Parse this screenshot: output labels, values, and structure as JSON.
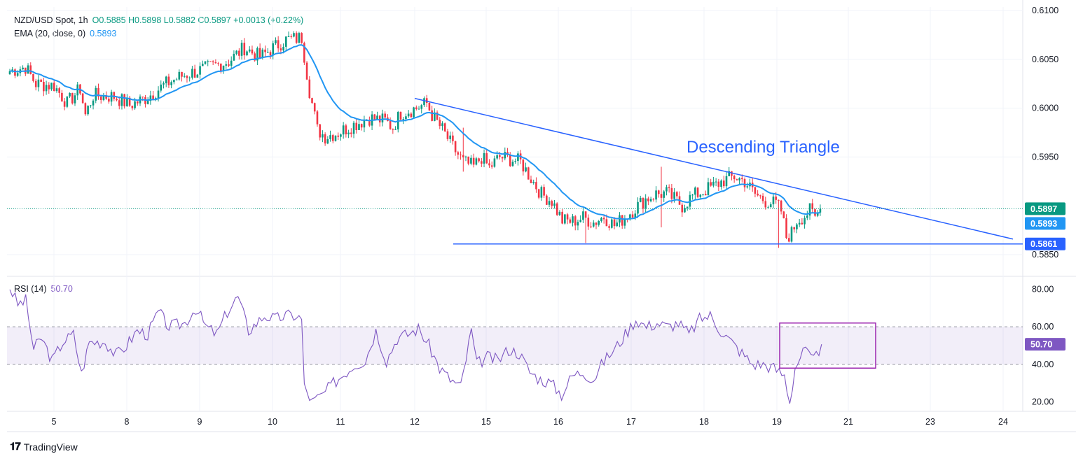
{
  "header": {
    "symbol": "NZD/USD Spot, 1h",
    "ohlc": "O0.5885  H0.5898  L0.5882  C0.5897  +0.0013 (+0.22%)",
    "ema_label": "EMA (20, close, 0)",
    "ema_value": "0.5893",
    "rsi_label": "RSI (14)",
    "rsi_value": "50.70"
  },
  "footer": {
    "brand": "TradingView"
  },
  "colors": {
    "up": "#089981",
    "down": "#f23645",
    "ema": "#2196f3",
    "trend": "#2962ff",
    "rsi": "#7e57c2",
    "grid": "#f0f3fa"
  },
  "chart_data": [
    {
      "type": "candlestick",
      "title": "NZD/USD Spot, 1h",
      "annotation": "Descending Triangle",
      "x_tick_labels": [
        "5",
        "8",
        "9",
        "10",
        "11",
        "12",
        "15",
        "16",
        "17",
        "18",
        "19",
        "21",
        "23",
        "24"
      ],
      "y_tick_labels": [
        "0.6100",
        "0.6050",
        "0.6000",
        "0.5950",
        "0.5850"
      ],
      "ylim": [
        0.5835,
        0.6105
      ],
      "support_level": 0.5861,
      "support_label": "0.5861",
      "resistance_line": {
        "from_day": "12",
        "from_price": 0.601,
        "to_day": "24",
        "to_price": 0.5866
      },
      "last_price": 0.5897,
      "last_price_label": "0.5897",
      "ema_last": 0.5893,
      "ema_last_label": "0.5893",
      "price_path": [
        {
          "i": 0,
          "p": 0.6038
        },
        {
          "i": 6,
          "p": 0.6042
        },
        {
          "i": 10,
          "p": 0.6025
        },
        {
          "i": 17,
          "p": 0.6023
        },
        {
          "i": 22,
          "p": 0.6005
        },
        {
          "i": 27,
          "p": 0.602
        },
        {
          "i": 29,
          "p": 0.5993
        },
        {
          "i": 32,
          "p": 0.6013
        },
        {
          "i": 40,
          "p": 0.6012
        },
        {
          "i": 46,
          "p": 0.6003
        },
        {
          "i": 52,
          "p": 0.601
        },
        {
          "i": 60,
          "p": 0.6025
        },
        {
          "i": 66,
          "p": 0.6033
        },
        {
          "i": 72,
          "p": 0.6038
        },
        {
          "i": 78,
          "p": 0.6043
        },
        {
          "i": 84,
          "p": 0.6048
        },
        {
          "i": 90,
          "p": 0.6062
        },
        {
          "i": 96,
          "p": 0.6052
        },
        {
          "i": 100,
          "p": 0.606
        },
        {
          "i": 106,
          "p": 0.607
        },
        {
          "i": 112,
          "p": 0.6072
        },
        {
          "i": 115,
          "p": 0.6018
        },
        {
          "i": 118,
          "p": 0.5978
        },
        {
          "i": 121,
          "p": 0.5971
        },
        {
          "i": 126,
          "p": 0.5975
        },
        {
          "i": 132,
          "p": 0.5983
        },
        {
          "i": 138,
          "p": 0.599
        },
        {
          "i": 144,
          "p": 0.5987
        },
        {
          "i": 147,
          "p": 0.598
        },
        {
          "i": 150,
          "p": 0.5995
        },
        {
          "i": 156,
          "p": 0.6
        },
        {
          "i": 160,
          "p": 0.6005
        },
        {
          "i": 162,
          "p": 0.5993
        },
        {
          "i": 166,
          "p": 0.5978
        },
        {
          "i": 170,
          "p": 0.596
        },
        {
          "i": 174,
          "p": 0.5945
        },
        {
          "i": 178,
          "p": 0.594
        },
        {
          "i": 181,
          "p": 0.595
        },
        {
          "i": 184,
          "p": 0.5939
        },
        {
          "i": 188,
          "p": 0.595
        },
        {
          "i": 192,
          "p": 0.5948
        },
        {
          "i": 196,
          "p": 0.5945
        },
        {
          "i": 200,
          "p": 0.5928
        },
        {
          "i": 204,
          "p": 0.5912
        },
        {
          "i": 208,
          "p": 0.5905
        },
        {
          "i": 212,
          "p": 0.5885
        },
        {
          "i": 216,
          "p": 0.5884
        },
        {
          "i": 220,
          "p": 0.5888
        },
        {
          "i": 224,
          "p": 0.5883
        },
        {
          "i": 228,
          "p": 0.5889
        },
        {
          "i": 232,
          "p": 0.588
        },
        {
          "i": 236,
          "p": 0.5888
        },
        {
          "i": 240,
          "p": 0.5898
        },
        {
          "i": 244,
          "p": 0.5907
        },
        {
          "i": 248,
          "p": 0.5912
        },
        {
          "i": 252,
          "p": 0.5913
        },
        {
          "i": 256,
          "p": 0.5905
        },
        {
          "i": 258,
          "p": 0.59
        },
        {
          "i": 262,
          "p": 0.591
        },
        {
          "i": 266,
          "p": 0.5915
        },
        {
          "i": 270,
          "p": 0.592
        },
        {
          "i": 274,
          "p": 0.5926
        },
        {
          "i": 278,
          "p": 0.593
        },
        {
          "i": 282,
          "p": 0.5925
        },
        {
          "i": 286,
          "p": 0.5912
        },
        {
          "i": 290,
          "p": 0.5905
        },
        {
          "i": 294,
          "p": 0.5902
        },
        {
          "i": 296,
          "p": 0.5895
        },
        {
          "i": 298,
          "p": 0.5868
        },
        {
          "i": 300,
          "p": 0.5872
        },
        {
          "i": 302,
          "p": 0.5885
        },
        {
          "i": 305,
          "p": 0.589
        },
        {
          "i": 307,
          "p": 0.5895
        },
        {
          "i": 309,
          "p": 0.5888
        },
        {
          "i": 311,
          "p": 0.5897
        }
      ],
      "spikes": [
        {
          "i": 174,
          "hi": 0.598,
          "lo": 0.5935
        },
        {
          "i": 221,
          "hi": 0.5892,
          "lo": 0.5862
        },
        {
          "i": 250,
          "hi": 0.594,
          "lo": 0.5878
        },
        {
          "i": 295,
          "hi": 0.5902,
          "lo": 0.5857
        }
      ]
    },
    {
      "type": "line",
      "title": "RSI (14)",
      "y_tick_labels": [
        "80.00",
        "60.00",
        "40.00",
        "20.00"
      ],
      "ylim": [
        15,
        85
      ],
      "band": [
        40,
        60
      ],
      "last_value": 50.7,
      "last_value_label": "50.70",
      "highlight_box": {
        "from_i": 292,
        "to_i": 325,
        "from_value": 38,
        "to_value": 62
      },
      "rsi_path": [
        {
          "i": 0,
          "v": 81
        },
        {
          "i": 3,
          "v": 72
        },
        {
          "i": 6,
          "v": 74
        },
        {
          "i": 9,
          "v": 48
        },
        {
          "i": 12,
          "v": 54
        },
        {
          "i": 16,
          "v": 42
        },
        {
          "i": 20,
          "v": 52
        },
        {
          "i": 24,
          "v": 56
        },
        {
          "i": 27,
          "v": 35
        },
        {
          "i": 30,
          "v": 52
        },
        {
          "i": 36,
          "v": 52
        },
        {
          "i": 40,
          "v": 45
        },
        {
          "i": 44,
          "v": 50
        },
        {
          "i": 48,
          "v": 58
        },
        {
          "i": 52,
          "v": 56
        },
        {
          "i": 56,
          "v": 68
        },
        {
          "i": 60,
          "v": 60
        },
        {
          "i": 66,
          "v": 62
        },
        {
          "i": 70,
          "v": 70
        },
        {
          "i": 74,
          "v": 60
        },
        {
          "i": 78,
          "v": 56
        },
        {
          "i": 82,
          "v": 68
        },
        {
          "i": 86,
          "v": 76
        },
        {
          "i": 90,
          "v": 58
        },
        {
          "i": 96,
          "v": 66
        },
        {
          "i": 100,
          "v": 64
        },
        {
          "i": 104,
          "v": 66
        },
        {
          "i": 108,
          "v": 66
        },
        {
          "i": 110,
          "v": 64
        },
        {
          "i": 111,
          "v": 28
        },
        {
          "i": 114,
          "v": 20
        },
        {
          "i": 118,
          "v": 24
        },
        {
          "i": 122,
          "v": 30
        },
        {
          "i": 126,
          "v": 35
        },
        {
          "i": 130,
          "v": 40
        },
        {
          "i": 134,
          "v": 42
        },
        {
          "i": 138,
          "v": 58
        },
        {
          "i": 142,
          "v": 42
        },
        {
          "i": 146,
          "v": 54
        },
        {
          "i": 150,
          "v": 56
        },
        {
          "i": 154,
          "v": 59
        },
        {
          "i": 158,
          "v": 50
        },
        {
          "i": 162,
          "v": 38
        },
        {
          "i": 166,
          "v": 32
        },
        {
          "i": 170,
          "v": 28
        },
        {
          "i": 174,
          "v": 58
        },
        {
          "i": 176,
          "v": 40
        },
        {
          "i": 180,
          "v": 44
        },
        {
          "i": 184,
          "v": 42
        },
        {
          "i": 188,
          "v": 48
        },
        {
          "i": 192,
          "v": 46
        },
        {
          "i": 196,
          "v": 36
        },
        {
          "i": 200,
          "v": 32
        },
        {
          "i": 204,
          "v": 30
        },
        {
          "i": 208,
          "v": 24
        },
        {
          "i": 212,
          "v": 34
        },
        {
          "i": 216,
          "v": 36
        },
        {
          "i": 220,
          "v": 32
        },
        {
          "i": 224,
          "v": 42
        },
        {
          "i": 228,
          "v": 48
        },
        {
          "i": 232,
          "v": 56
        },
        {
          "i": 236,
          "v": 64
        },
        {
          "i": 240,
          "v": 60
        },
        {
          "i": 244,
          "v": 62
        },
        {
          "i": 248,
          "v": 60
        },
        {
          "i": 252,
          "v": 62
        },
        {
          "i": 256,
          "v": 56
        },
        {
          "i": 260,
          "v": 64
        },
        {
          "i": 264,
          "v": 66
        },
        {
          "i": 268,
          "v": 58
        },
        {
          "i": 272,
          "v": 52
        },
        {
          "i": 276,
          "v": 46
        },
        {
          "i": 280,
          "v": 40
        },
        {
          "i": 284,
          "v": 40
        },
        {
          "i": 288,
          "v": 38
        },
        {
          "i": 292,
          "v": 34
        },
        {
          "i": 294,
          "v": 20
        },
        {
          "i": 296,
          "v": 38
        },
        {
          "i": 298,
          "v": 44
        },
        {
          "i": 300,
          "v": 48
        },
        {
          "i": 302,
          "v": 42
        },
        {
          "i": 304,
          "v": 44
        },
        {
          "i": 306,
          "v": 50.7
        }
      ]
    }
  ]
}
